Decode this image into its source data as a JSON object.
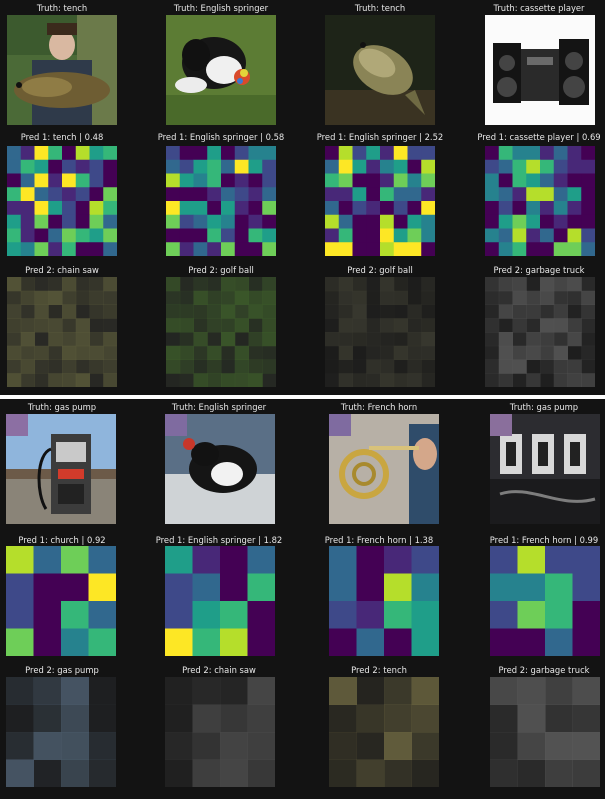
{
  "panels": [
    {
      "rows": [
        {
          "kind": "image",
          "titles": [
            "Truth: tench",
            "Truth: English springer",
            "Truth: tench",
            "Truth: cassette player"
          ]
        },
        {
          "kind": "heat",
          "titles": [
            "Pred 1: tench | 0.48",
            "Pred 1: English springer | 0.58",
            "Pred 1: English springer | 2.52",
            "Pred 1: cassette player | 0.69"
          ]
        },
        {
          "kind": "masked",
          "titles": [
            "Pred 2: chain saw",
            "Pred 2: golf ball",
            "Pred 2: golf ball",
            "Pred 2: garbage truck"
          ]
        }
      ]
    },
    {
      "rows": [
        {
          "kind": "image",
          "titles": [
            "Truth: gas pump",
            "Truth: English springer",
            "Truth: French horn",
            "Truth: gas pump"
          ]
        },
        {
          "kind": "heat",
          "titles": [
            "Pred 1: church | 0.92",
            "Pred 1: English springer | 1.82",
            "Pred 1: French horn | 1.38",
            "Pred 1: French horn | 0.99"
          ]
        },
        {
          "kind": "masked",
          "titles": [
            "Pred 2: gas pump",
            "Pred 2: chain saw",
            "Pred 2: tench",
            "Pred 2: garbage truck"
          ]
        }
      ]
    }
  ],
  "images": [
    "tench-fisherman",
    "english-springer-grass",
    "tench-fish",
    "cassette-player",
    "gas-pump",
    "english-springer-puppy",
    "french-horn-player",
    "gas-pump-closeup"
  ],
  "colors": {
    "background": "#131313",
    "title_text": "#e8e8e8",
    "heat_low": "#440154",
    "heat_mid": "#21918c",
    "heat_high": "#fde725"
  }
}
